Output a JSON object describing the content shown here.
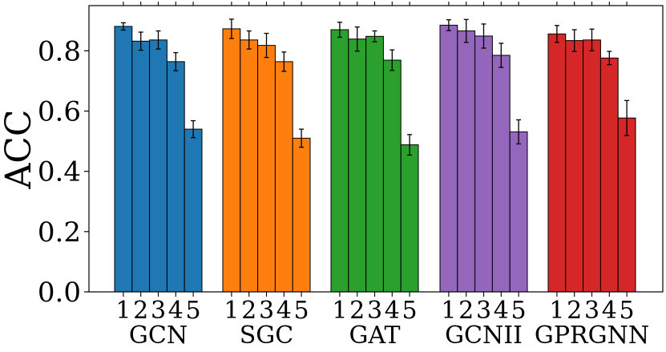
{
  "chart_data": {
    "type": "bar",
    "title": "",
    "xlabel": "",
    "ylabel": "ACC",
    "ylim": [
      0,
      0.95
    ],
    "yticks": [
      0.0,
      0.2,
      0.4,
      0.6,
      0.8
    ],
    "ytick_labels": [
      "0.0",
      "0.2",
      "0.4",
      "0.6",
      "0.8"
    ],
    "grid": false,
    "legend": "none",
    "categories": [
      "1",
      "2",
      "3",
      "4",
      "5"
    ],
    "groups": [
      {
        "name": "GCN",
        "color": "#1f77b4",
        "values": [
          0.881,
          0.832,
          0.836,
          0.764,
          0.54
        ],
        "errors": [
          0.012,
          0.03,
          0.03,
          0.03,
          0.028
        ]
      },
      {
        "name": "SGC",
        "color": "#ff7f0e",
        "values": [
          0.873,
          0.836,
          0.818,
          0.764,
          0.51
        ],
        "errors": [
          0.032,
          0.03,
          0.04,
          0.032,
          0.03
        ]
      },
      {
        "name": "GAT",
        "color": "#2ca02c",
        "values": [
          0.87,
          0.839,
          0.848,
          0.769,
          0.488
        ],
        "errors": [
          0.025,
          0.04,
          0.018,
          0.034,
          0.034
        ]
      },
      {
        "name": "GCNII",
        "color": "#9467bd",
        "values": [
          0.885,
          0.866,
          0.849,
          0.785,
          0.531
        ],
        "errors": [
          0.018,
          0.038,
          0.04,
          0.04,
          0.04
        ]
      },
      {
        "name": "GPRGNN",
        "color": "#d62728",
        "values": [
          0.856,
          0.834,
          0.836,
          0.776,
          0.577
        ],
        "errors": [
          0.028,
          0.036,
          0.036,
          0.022,
          0.058
        ]
      }
    ]
  }
}
